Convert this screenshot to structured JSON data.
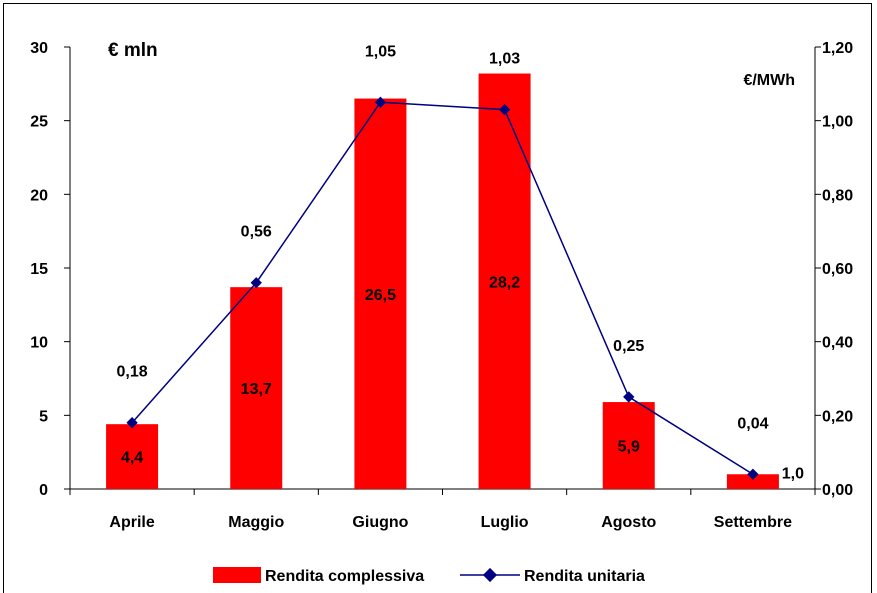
{
  "chart_data": {
    "type": "bar+line",
    "categories": [
      "Aprile",
      "Maggio",
      "Giugno",
      "Luglio",
      "Agosto",
      "Settembre"
    ],
    "series": [
      {
        "name": "Rendita complessiva",
        "type": "bar",
        "axis": "left",
        "values": [
          4.4,
          13.7,
          26.5,
          28.2,
          5.9,
          1.0
        ],
        "labels": [
          "4,4",
          "13,7",
          "26,5",
          "28,2",
          "5,9",
          "1,0"
        ]
      },
      {
        "name": "Rendita unitaria",
        "type": "line",
        "axis": "right",
        "values": [
          0.18,
          0.56,
          1.05,
          1.03,
          0.25,
          0.04
        ],
        "labels": [
          "0,18",
          "0,56",
          "1,05",
          "1,03",
          "0,25",
          "0,04"
        ]
      }
    ],
    "y_left": {
      "label": "€ mln",
      "range": [
        0,
        30
      ],
      "ticks": [
        "0",
        "5",
        "10",
        "15",
        "20",
        "25",
        "30"
      ]
    },
    "y_right": {
      "label": "€/MWh",
      "range": [
        0,
        1.2
      ],
      "ticks": [
        "0,00",
        "0,20",
        "0,40",
        "0,60",
        "0,80",
        "1,00",
        "1,20"
      ]
    },
    "legend_position": "bottom",
    "grid": false,
    "colors": {
      "bar": "#ff0000",
      "line": "#000080"
    }
  }
}
